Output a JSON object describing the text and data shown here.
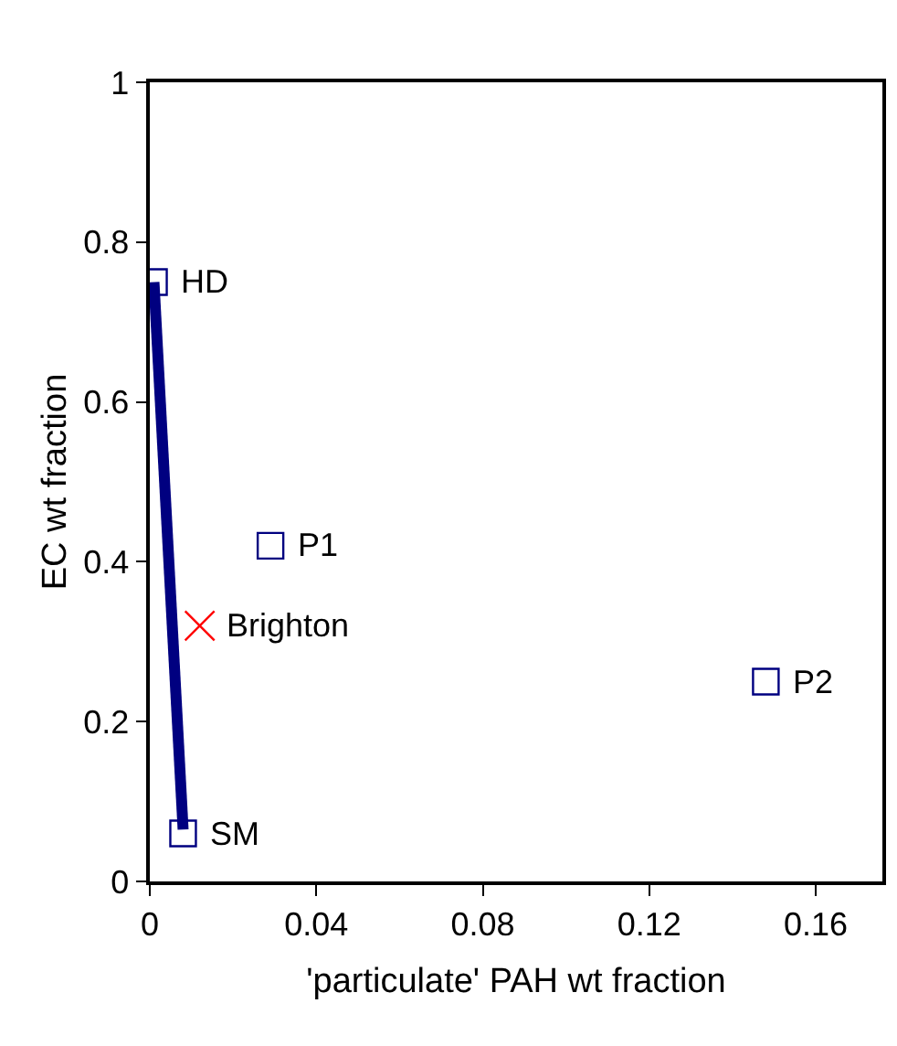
{
  "chart_data": {
    "type": "scatter",
    "xlabel": "'particulate' PAH wt fraction",
    "ylabel": "EC wt fraction",
    "xlim": [
      0,
      0.176
    ],
    "xticks": [
      0,
      0.04,
      0.08,
      0.12,
      0.16
    ],
    "ylim": [
      0,
      1
    ],
    "yticks": [
      0,
      0.2,
      0.4,
      0.6,
      0.8,
      1
    ],
    "grid": false,
    "legend": false,
    "series": [
      {
        "marker": "square",
        "color": "#000080",
        "x": [
          0.001,
          0.029,
          0.148,
          0.008
        ],
        "values": [
          0.75,
          0.42,
          0.25,
          0.06
        ]
      },
      {
        "marker": "cross",
        "color": "#ff0000",
        "x": [
          0.012
        ],
        "values": [
          0.32
        ]
      },
      {
        "type": "line",
        "marker": "none",
        "color": "#000080",
        "x": [
          0.001,
          0.008
        ],
        "values": [
          0.75,
          0.065
        ]
      }
    ],
    "annotations": [
      {
        "text": "HD",
        "x": 0.001,
        "y": 0.75
      },
      {
        "text": "P1",
        "x": 0.029,
        "y": 0.42
      },
      {
        "text": "Brighton",
        "x": 0.012,
        "y": 0.32
      },
      {
        "text": "P2",
        "x": 0.148,
        "y": 0.25
      },
      {
        "text": "SM",
        "x": 0.008,
        "y": 0.06
      }
    ]
  }
}
